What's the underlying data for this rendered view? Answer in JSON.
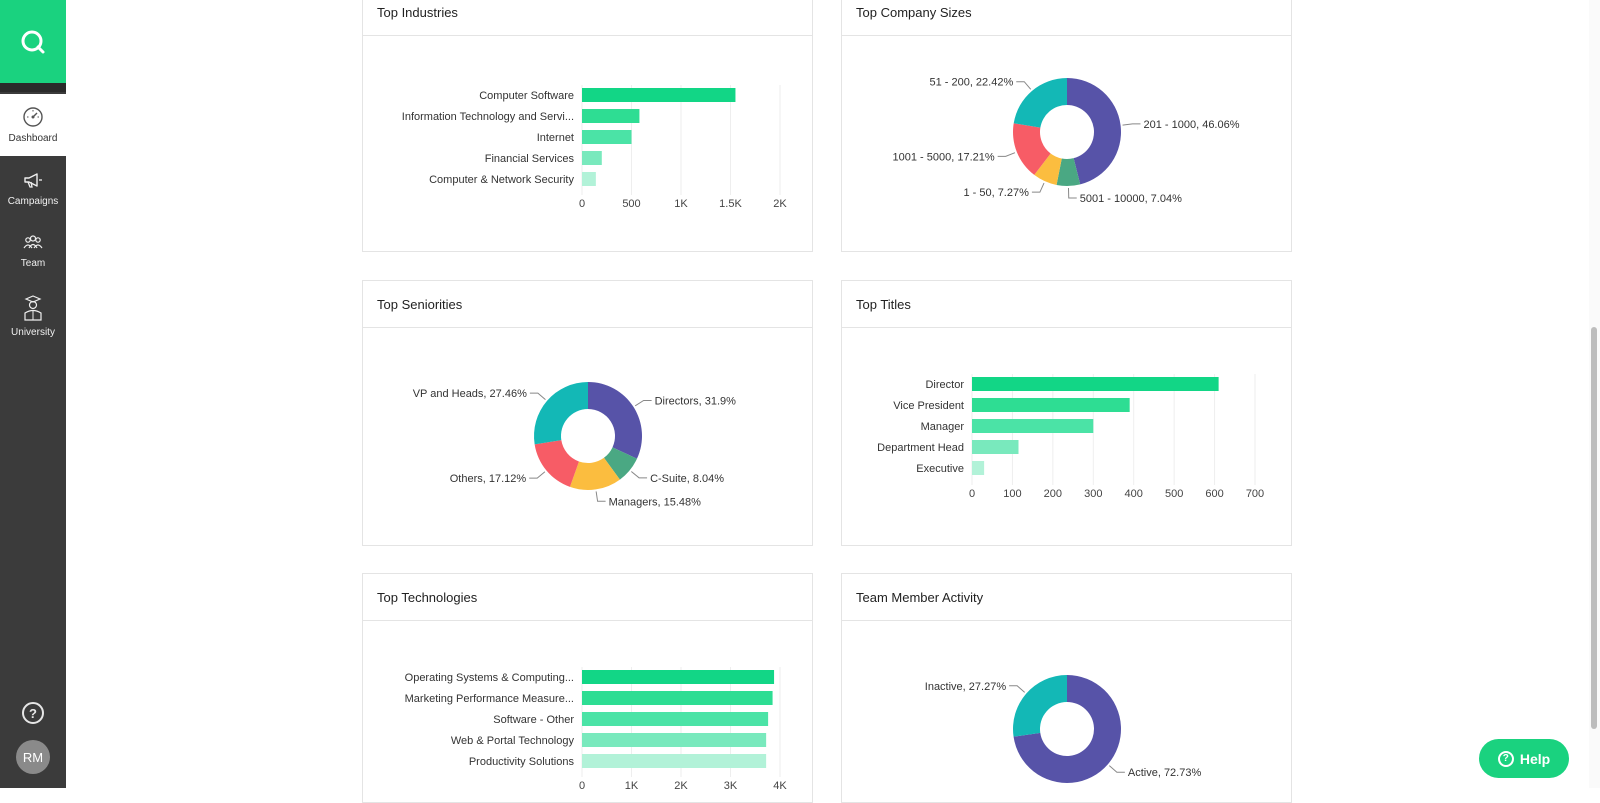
{
  "sidebar": {
    "items": [
      {
        "label": "Dashboard",
        "icon": "gauge-icon"
      },
      {
        "label": "Campaigns",
        "icon": "megaphone-icon"
      },
      {
        "label": "Team",
        "icon": "team-icon"
      },
      {
        "label": "University",
        "icon": "graduate-icon"
      }
    ],
    "help_glyph": "?",
    "avatar_initials": "RM"
  },
  "help_button": {
    "label": "Help",
    "glyph": "?"
  },
  "colors": {
    "brand": "#1ad27f",
    "sidebar_bg": "#3b3b3b"
  },
  "cards": {
    "industries": {
      "title": "Top Industries"
    },
    "company_sizes": {
      "title": "Top Company Sizes"
    },
    "seniorities": {
      "title": "Top Seniorities"
    },
    "titles": {
      "title": "Top Titles"
    },
    "technologies": {
      "title": "Top Technologies"
    },
    "team_activity": {
      "title": "Team Member Activity"
    }
  },
  "chart_data": [
    {
      "id": "industries",
      "type": "bar",
      "orientation": "horizontal",
      "categories": [
        "Computer Software",
        "Information Technology and Servi...",
        "Internet",
        "Financial Services",
        "Computer & Network Security"
      ],
      "values": [
        1550,
        580,
        500,
        200,
        140
      ],
      "ticks": [
        "0",
        "500",
        "1K",
        "1.5K",
        "2K"
      ],
      "xlim": [
        0,
        2000
      ],
      "colors": [
        "#12d686",
        "#2edd93",
        "#4be3a6",
        "#79e9bd",
        "#b2f2d8"
      ]
    },
    {
      "id": "company_sizes",
      "type": "pie",
      "donut": true,
      "slices": [
        {
          "label": "201 - 1000, 46.06%",
          "value": 46.06,
          "color": "#5753a8"
        },
        {
          "label": "5001 - 10000, 7.04%",
          "value": 7.04,
          "color": "#4aa883"
        },
        {
          "label": "1 - 50, 7.27%",
          "value": 7.27,
          "color": "#fbbd3f"
        },
        {
          "label": "1001 - 5000, 17.21%",
          "value": 17.21,
          "color": "#f75c66"
        },
        {
          "label": "51 - 200, 22.42%",
          "value": 22.42,
          "color": "#13b8b6"
        }
      ]
    },
    {
      "id": "seniorities",
      "type": "pie",
      "donut": true,
      "slices": [
        {
          "label": "Directors, 31.9%",
          "value": 31.9,
          "color": "#5753a8"
        },
        {
          "label": "C-Suite, 8.04%",
          "value": 8.04,
          "color": "#4aa883"
        },
        {
          "label": "Managers, 15.48%",
          "value": 15.48,
          "color": "#fbbd3f"
        },
        {
          "label": "Others, 17.12%",
          "value": 17.12,
          "color": "#f75c66"
        },
        {
          "label": "VP and Heads, 27.46%",
          "value": 27.46,
          "color": "#13b8b6"
        }
      ]
    },
    {
      "id": "titles",
      "type": "bar",
      "orientation": "horizontal",
      "categories": [
        "Director",
        "Vice President",
        "Manager",
        "Department Head",
        "Executive"
      ],
      "values": [
        610,
        390,
        300,
        115,
        30
      ],
      "ticks": [
        "0",
        "100",
        "200",
        "300",
        "400",
        "500",
        "600",
        "700"
      ],
      "xlim": [
        0,
        700
      ],
      "colors": [
        "#12d686",
        "#2edd93",
        "#4be3a6",
        "#79e9bd",
        "#b2f2d8"
      ]
    },
    {
      "id": "technologies",
      "type": "bar",
      "orientation": "horizontal",
      "categories": [
        "Operating Systems & Computing...",
        "Marketing Performance Measure...",
        "Software - Other",
        "Web & Portal Technology",
        "Productivity Solutions"
      ],
      "values": [
        3880,
        3850,
        3760,
        3720,
        3720
      ],
      "ticks": [
        "0",
        "1K",
        "2K",
        "3K",
        "4K"
      ],
      "xlim": [
        0,
        4000
      ],
      "colors": [
        "#12d686",
        "#2edd93",
        "#4be3a6",
        "#79e9bd",
        "#b2f2d8"
      ]
    },
    {
      "id": "team_activity",
      "type": "pie",
      "donut": true,
      "slices": [
        {
          "label": "Active, 72.73%",
          "value": 72.73,
          "color": "#5753a8"
        },
        {
          "label": "Inactive, 27.27%",
          "value": 27.27,
          "color": "#13b8b6"
        }
      ]
    }
  ]
}
